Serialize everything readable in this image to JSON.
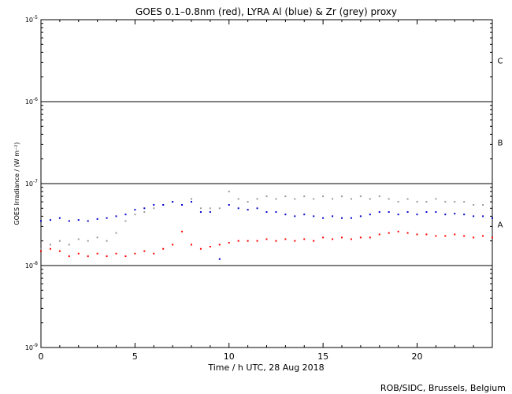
{
  "chart_data": {
    "type": "scatter",
    "title": "GOES 0.1–0.8nm (red), LYRA Al (blue) & Zr (grey) proxy",
    "xlabel": "Time / h UTC, 28 Aug 2018",
    "ylabel": "GOES Irradiance / (W m⁻²)",
    "xlim": [
      0,
      24
    ],
    "ylim": [
      1e-09,
      1e-05
    ],
    "yscale": "log",
    "x_ticks": [
      0,
      5,
      10,
      15,
      20
    ],
    "x_tick_labels": [
      "0",
      "5",
      "10",
      "15",
      "20"
    ],
    "y_ticks": [
      1e-09,
      1e-08,
      1e-07,
      1e-06,
      1e-05
    ],
    "y_tick_labels": [
      {
        "base": "10",
        "exp": "-9"
      },
      {
        "base": "10",
        "exp": "-8"
      },
      {
        "base": "10",
        "exp": "-7"
      },
      {
        "base": "10",
        "exp": "-6"
      },
      {
        "base": "10",
        "exp": "-5"
      }
    ],
    "flare_class_lines": [
      1e-08,
      1e-07,
      1e-06
    ],
    "flare_classes": [
      {
        "label": "A",
        "y": 3.2e-08
      },
      {
        "label": "B",
        "y": 3.2e-07
      },
      {
        "label": "C",
        "y": 3.2e-06
      }
    ],
    "grid": false,
    "series": [
      {
        "color": "#999999",
        "x": [
          0.0,
          0.5,
          1.0,
          1.5,
          2.0,
          2.5,
          3.0,
          3.5,
          4.0,
          4.5,
          5.0,
          5.5,
          6.0,
          6.5,
          7.0,
          7.5,
          8.0,
          8.5,
          9.0,
          9.5,
          10.0,
          10.5,
          11.0,
          11.5,
          12.0,
          12.5,
          13.0,
          13.5,
          14.0,
          14.5,
          15.0,
          15.5,
          16.0,
          16.5,
          17.0,
          17.5,
          18.0,
          18.5,
          19.0,
          19.5,
          20.0,
          20.5,
          21.0,
          21.5,
          22.0,
          22.5,
          23.0,
          23.5,
          24.0
        ],
        "y": [
          1.6e-08,
          1.8e-08,
          2e-08,
          1.8e-08,
          2.1e-08,
          2e-08,
          2.2e-08,
          2e-08,
          2.5e-08,
          3.5e-08,
          4.2e-08,
          4.5e-08,
          5e-08,
          5.5e-08,
          6e-08,
          5.5e-08,
          6.5e-08,
          5e-08,
          5e-08,
          5e-08,
          8e-08,
          6.5e-08,
          6e-08,
          6.5e-08,
          7e-08,
          6.5e-08,
          7e-08,
          6.5e-08,
          7e-08,
          6.5e-08,
          7e-08,
          6.5e-08,
          7e-08,
          6.5e-08,
          7e-08,
          6.5e-08,
          7e-08,
          6.5e-08,
          6e-08,
          6.5e-08,
          6e-08,
          6e-08,
          6.5e-08,
          6e-08,
          6e-08,
          6e-08,
          5.5e-08,
          5.5e-08,
          5.5e-08
        ]
      },
      {
        "color": "#0000cc",
        "x": [
          0.0,
          0.5,
          1.0,
          1.5,
          2.0,
          2.5,
          3.0,
          3.5,
          4.0,
          4.5,
          5.0,
          5.5,
          6.0,
          6.5,
          7.0,
          7.5,
          8.0,
          8.5,
          9.0,
          9.5,
          10.0,
          10.5,
          11.0,
          11.5,
          12.0,
          12.5,
          13.0,
          13.5,
          14.0,
          14.5,
          15.0,
          15.5,
          16.0,
          16.5,
          17.0,
          17.5,
          18.0,
          18.5,
          19.0,
          19.5,
          20.0,
          20.5,
          21.0,
          21.5,
          22.0,
          22.5,
          23.0,
          23.5,
          24.0
        ],
        "y": [
          3.5e-08,
          3.6e-08,
          3.8e-08,
          3.5e-08,
          3.6e-08,
          3.5e-08,
          3.7e-08,
          3.8e-08,
          4e-08,
          4.2e-08,
          4.8e-08,
          5e-08,
          5.5e-08,
          5.5e-08,
          6e-08,
          5.5e-08,
          6e-08,
          4.5e-08,
          4.5e-08,
          1.2e-08,
          5.5e-08,
          5e-08,
          4.8e-08,
          5e-08,
          4.5e-08,
          4.5e-08,
          4.2e-08,
          4e-08,
          4.2e-08,
          4e-08,
          3.8e-08,
          4e-08,
          3.8e-08,
          3.8e-08,
          4e-08,
          4.2e-08,
          4.5e-08,
          4.5e-08,
          4.2e-08,
          4.5e-08,
          4.2e-08,
          4.5e-08,
          4.5e-08,
          4.2e-08,
          4.3e-08,
          4.2e-08,
          4e-08,
          4e-08,
          3.8e-08
        ]
      },
      {
        "color": "#ff0000",
        "x": [
          0.0,
          0.5,
          1.0,
          1.5,
          2.0,
          2.5,
          3.0,
          3.5,
          4.0,
          4.5,
          5.0,
          5.5,
          6.0,
          6.5,
          7.0,
          7.5,
          8.0,
          8.5,
          9.0,
          9.5,
          10.0,
          10.5,
          11.0,
          11.5,
          12.0,
          12.5,
          13.0,
          13.5,
          14.0,
          14.5,
          15.0,
          15.5,
          16.0,
          16.5,
          17.0,
          17.5,
          18.0,
          18.5,
          19.0,
          19.5,
          20.0,
          20.5,
          21.0,
          21.5,
          22.0,
          22.5,
          23.0,
          23.5,
          24.0
        ],
        "y": [
          1.5e-08,
          1.6e-08,
          1.5e-08,
          1.3e-08,
          1.4e-08,
          1.3e-08,
          1.4e-08,
          1.3e-08,
          1.4e-08,
          1.3e-08,
          1.4e-08,
          1.5e-08,
          1.4e-08,
          1.6e-08,
          1.8e-08,
          2.6e-08,
          1.8e-08,
          1.6e-08,
          1.7e-08,
          1.8e-08,
          1.9e-08,
          2e-08,
          2e-08,
          2e-08,
          2.1e-08,
          2e-08,
          2.1e-08,
          2e-08,
          2.1e-08,
          2e-08,
          2.2e-08,
          2.1e-08,
          2.2e-08,
          2.1e-08,
          2.2e-08,
          2.2e-08,
          2.4e-08,
          2.5e-08,
          2.6e-08,
          2.5e-08,
          2.4e-08,
          2.4e-08,
          2.3e-08,
          2.3e-08,
          2.4e-08,
          2.3e-08,
          2.2e-08,
          2.3e-08,
          2.2e-08
        ]
      }
    ]
  },
  "footer": {
    "credit": "ROB/SIDC, Brussels, Belgium"
  }
}
